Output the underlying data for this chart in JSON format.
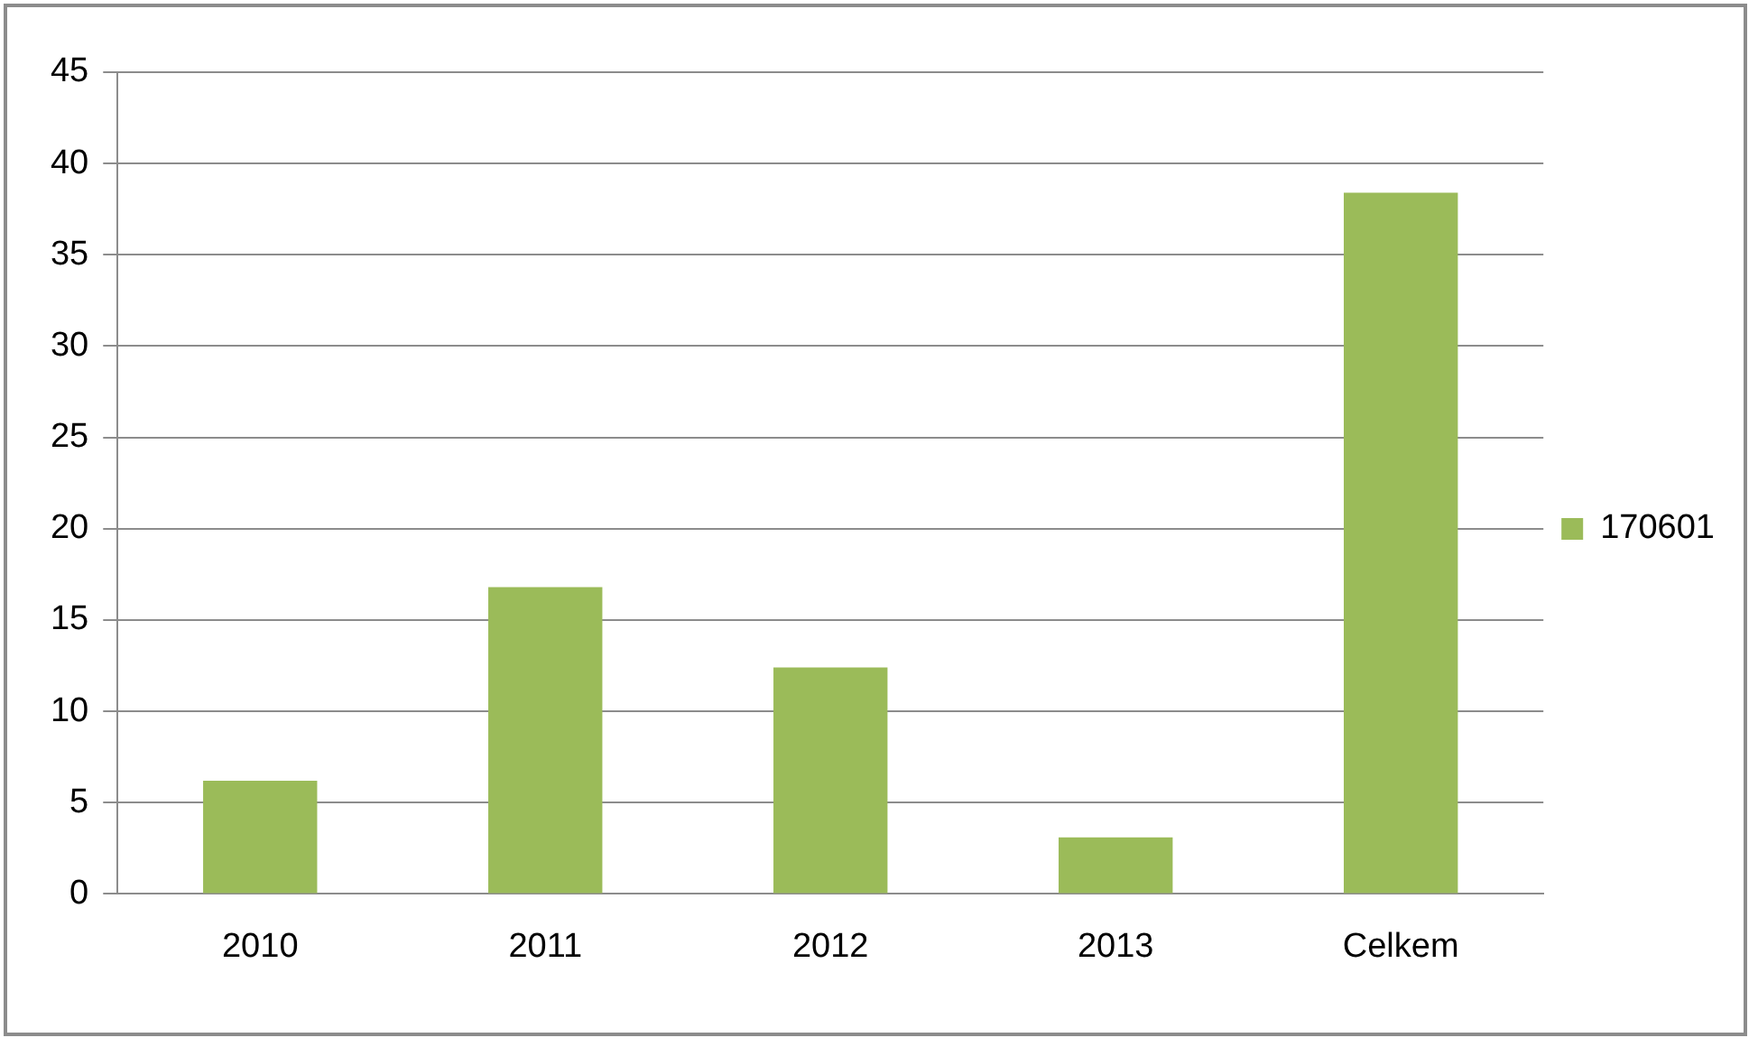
{
  "chart_data": {
    "type": "bar",
    "categories": [
      "2010",
      "2011",
      "2012",
      "2013",
      "Celkem"
    ],
    "series": [
      {
        "name": "170601",
        "color": "#9bbb59",
        "values": [
          6.2,
          16.8,
          12.4,
          3.1,
          38.4
        ]
      }
    ],
    "ylim": [
      0,
      45
    ],
    "yticks": [
      0,
      5,
      10,
      15,
      20,
      25,
      30,
      35,
      40,
      45
    ],
    "grid": "y",
    "legend": "right"
  }
}
